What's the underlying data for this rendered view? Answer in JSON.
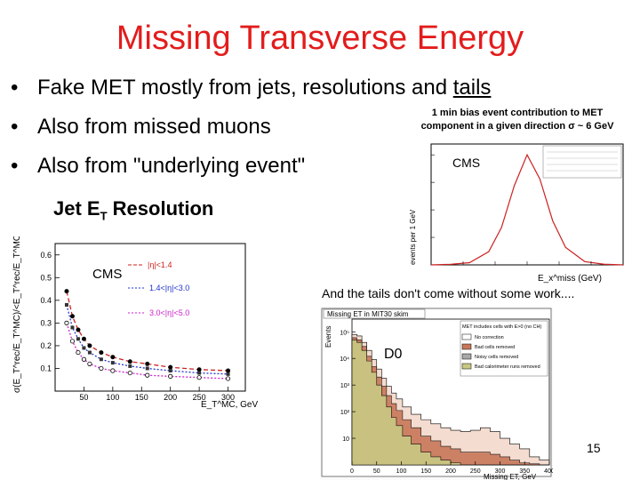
{
  "slide": {
    "title": "Missing Transverse Energy",
    "bullets": [
      {
        "bullet": "•",
        "text": "Fake MET mostly from jets, resolutions and",
        "underlined": "tails"
      },
      {
        "bullet": "•",
        "text": "Also from missed muons",
        "underlined": ""
      },
      {
        "bullet": "•",
        "text": "Also from \"underlying event\"",
        "underlined": ""
      }
    ],
    "page_number": "15"
  },
  "figure1": {
    "caption_line1": "1 min bias event contribution to MET",
    "caption_line2": "component in a given direction σ ~ 6 GeV",
    "label": "CMS",
    "ylabel": "events per 1 GeV",
    "xlabel": "E_x^miss (GeV)"
  },
  "figure2": {
    "title": "Jet E",
    "title_sub": "T",
    "title_rest": " Resolution",
    "label": "CMS",
    "ylabel": "σ(E_T^rec/E_T^MC)/<E_T^rec/E_T^MC>",
    "xlabel": "E_T^MC, GeV",
    "legend": [
      "|η|<1.4",
      "1.4<|η|<3.0",
      "3.0<|η|<5.0"
    ],
    "yticks": [
      "0.6",
      "0.5",
      "0.4",
      "0.3",
      "0.2",
      "0.1"
    ],
    "xticks": [
      "50",
      "100",
      "150",
      "200",
      "250",
      "300"
    ]
  },
  "figure3": {
    "caption": "And the tails don't come without some work....",
    "header": "Missing ET in MIT30 skim",
    "label": "D0",
    "legend": [
      "MET includes cells with E>0 (no CH)",
      "No correction",
      "Bad cells removed",
      "Noisy cells removed",
      "Bad calorimeter runs removed"
    ],
    "ylabel": "Events",
    "xlabel": "Missing ET, GeV",
    "xticks": [
      "0",
      "50",
      "100",
      "150",
      "200",
      "250",
      "300",
      "350",
      "400"
    ],
    "yticks": [
      "10⁵",
      "10⁴",
      "10³",
      "10²",
      "10"
    ]
  },
  "chart_data": [
    {
      "type": "line",
      "title": "Jet ET Resolution",
      "xlabel": "E_T^MC, GeV",
      "ylabel": "σ(E_T^rec/E_T^MC)/<E_T^rec/E_T^MC>",
      "xlim": [
        0,
        330
      ],
      "ylim": [
        0,
        0.65
      ],
      "series": [
        {
          "name": "|η|<1.4",
          "x": [
            20,
            30,
            40,
            50,
            60,
            80,
            100,
            130,
            160,
            200,
            250,
            300
          ],
          "y": [
            0.44,
            0.33,
            0.27,
            0.23,
            0.2,
            0.17,
            0.15,
            0.13,
            0.12,
            0.105,
            0.095,
            0.09
          ]
        },
        {
          "name": "1.4<|η|<3.0",
          "x": [
            20,
            30,
            40,
            50,
            60,
            80,
            100,
            130,
            160,
            200,
            250,
            300
          ],
          "y": [
            0.38,
            0.28,
            0.23,
            0.19,
            0.17,
            0.14,
            0.125,
            0.11,
            0.1,
            0.09,
            0.08,
            0.075
          ]
        },
        {
          "name": "3.0<|η|<5.0",
          "x": [
            20,
            30,
            40,
            50,
            60,
            80,
            100,
            130,
            160,
            200,
            250,
            300
          ],
          "y": [
            0.3,
            0.22,
            0.17,
            0.14,
            0.12,
            0.1,
            0.09,
            0.08,
            0.07,
            0.065,
            0.06,
            0.055
          ]
        }
      ]
    },
    {
      "type": "bar",
      "title": "Missing ET in MIT30 skim",
      "xlabel": "Missing ET, GeV",
      "ylabel": "Events",
      "xlim": [
        0,
        400
      ],
      "log_y": true,
      "ylim": [
        1,
        300000
      ],
      "series": [
        {
          "name": "No correction",
          "x": [
            5,
            15,
            25,
            35,
            45,
            55,
            65,
            75,
            85,
            95,
            110,
            130,
            150,
            170,
            190,
            210,
            230,
            250,
            270,
            290,
            310,
            330,
            350,
            370,
            390
          ],
          "values": [
            80000,
            70000,
            40000,
            20000,
            9000,
            4000,
            1800,
            900,
            500,
            300,
            150,
            80,
            50,
            35,
            25,
            20,
            18,
            20,
            25,
            18,
            10,
            6,
            4,
            2,
            1.5
          ]
        },
        {
          "name": "Bad cells removed",
          "x": [
            5,
            15,
            25,
            35,
            45,
            55,
            65,
            75,
            85,
            95,
            110,
            130,
            150,
            170,
            190,
            210,
            230,
            250,
            270,
            290,
            310,
            330,
            350,
            370,
            390
          ],
          "values": [
            60000,
            50000,
            28000,
            12000,
            5000,
            2000,
            900,
            400,
            200,
            110,
            50,
            25,
            12,
            8,
            5,
            4,
            3,
            3,
            3,
            2.5,
            2,
            1.5,
            1.2,
            1.1,
            1
          ]
        },
        {
          "name": "Bad calorimeter runs removed",
          "x": [
            5,
            15,
            25,
            35,
            45,
            55,
            65,
            75,
            85,
            95,
            110,
            130,
            150,
            170,
            190,
            210,
            230,
            250,
            270,
            290,
            310,
            330,
            350,
            370,
            390
          ],
          "values": [
            50000,
            40000,
            20000,
            8000,
            3000,
            1000,
            400,
            150,
            60,
            30,
            12,
            6,
            3,
            2,
            1.5,
            1.2,
            1,
            1,
            1,
            1,
            1,
            1,
            1,
            1,
            1
          ]
        }
      ]
    },
    {
      "type": "line",
      "title": "1 min bias event contribution to MET component in a given direction",
      "xlabel": "E_x^miss (GeV)",
      "ylabel": "events per 1 GeV",
      "xlim": [
        -30,
        30
      ],
      "series": [
        {
          "name": "CMS",
          "x": [
            -30,
            -24,
            -18,
            -12,
            -8,
            -4,
            0,
            4,
            8,
            12,
            18,
            24,
            30
          ],
          "y": [
            0.0,
            0.5,
            2.0,
            12.0,
            34.0,
            72.0,
            100.0,
            78.0,
            40.0,
            16.0,
            3.0,
            0.6,
            0.0
          ]
        }
      ]
    }
  ],
  "colors": {
    "title": "#e31c1c",
    "red": "#cc2222",
    "blue": "#2233cc",
    "magenta": "#cc22cc",
    "olive": "#c8c882"
  }
}
